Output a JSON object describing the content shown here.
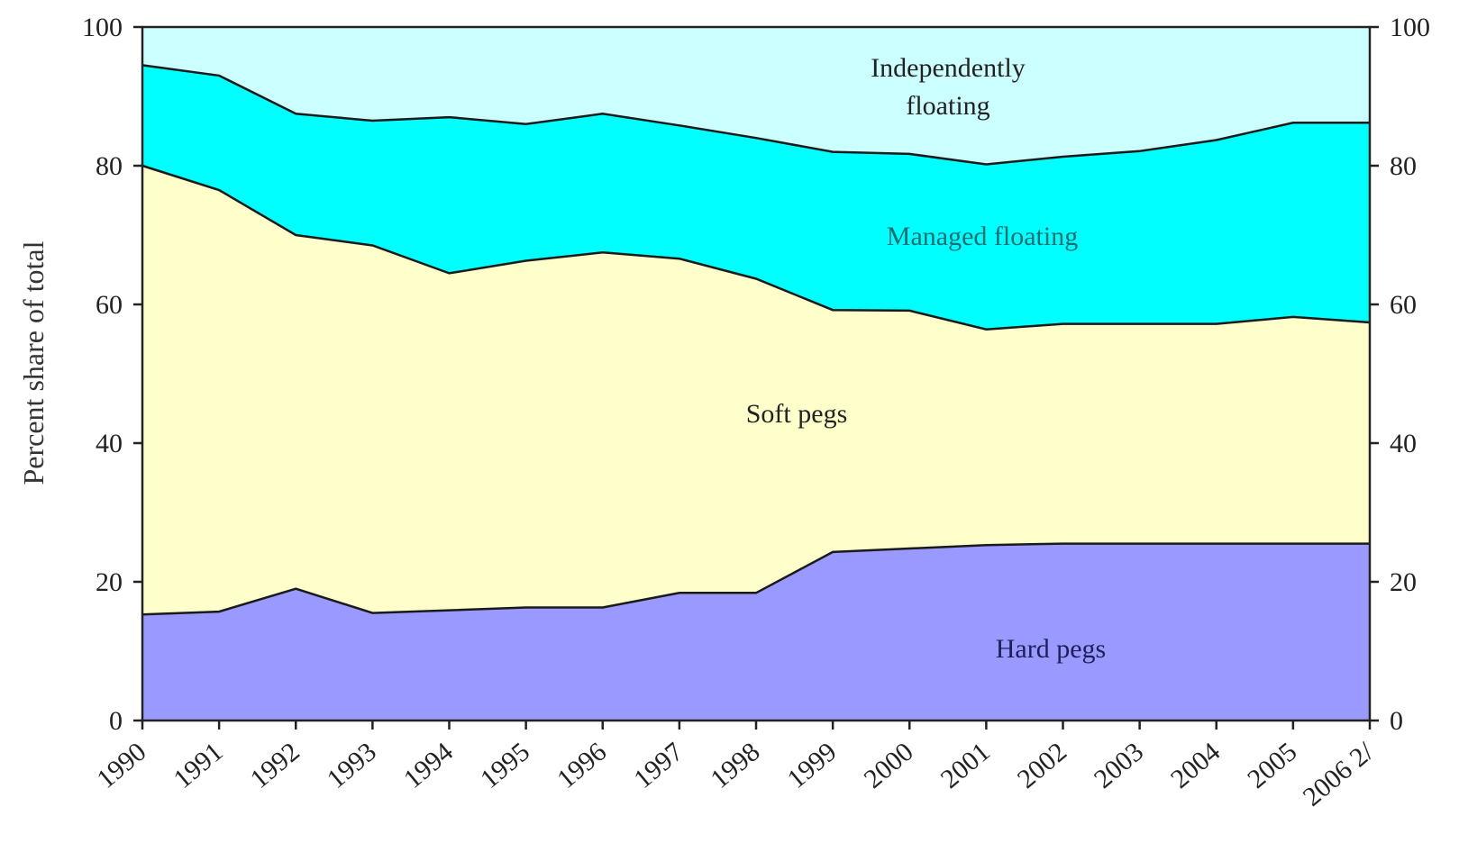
{
  "chart_data": {
    "type": "area",
    "stacked": true,
    "ylabel": "Percent share of total",
    "xlabel": "",
    "ylim": [
      0,
      100
    ],
    "yticks": [
      0,
      20,
      40,
      60,
      80,
      100
    ],
    "secondary_yaxis": true,
    "x": [
      "1990",
      "1991",
      "1992",
      "1993",
      "1994",
      "1995",
      "1996",
      "1997",
      "1998",
      "1999",
      "2000",
      "2001",
      "2002",
      "2003",
      "2004",
      "2005",
      "2006 2/"
    ],
    "series": [
      {
        "name": "Hard pegs",
        "color": "#9999ff",
        "values": [
          15.3,
          15.7,
          19.0,
          15.5,
          15.9,
          16.3,
          16.3,
          18.4,
          18.4,
          24.3,
          24.8,
          25.3,
          25.5,
          25.5,
          25.5,
          25.5,
          25.5
        ]
      },
      {
        "name": "Soft pegs",
        "color": "#ffffcc",
        "values": [
          64.7,
          60.8,
          51.0,
          53.0,
          48.6,
          50.0,
          51.2,
          48.2,
          45.3,
          34.9,
          34.3,
          31.1,
          31.7,
          31.7,
          31.7,
          32.7,
          31.9
        ]
      },
      {
        "name": "Managed floating",
        "color": "#00ffff",
        "values": [
          14.5,
          16.5,
          17.5,
          18.0,
          22.5,
          19.7,
          20.0,
          19.2,
          20.3,
          22.8,
          22.6,
          23.8,
          24.1,
          24.9,
          26.5,
          28.0,
          28.8
        ]
      },
      {
        "name": "Independently floating",
        "color": "#ccffff",
        "values": [
          5.5,
          7.0,
          12.5,
          13.5,
          13.0,
          14.0,
          12.5,
          14.2,
          16.0,
          18.0,
          18.3,
          19.8,
          18.7,
          17.9,
          16.3,
          13.8,
          13.8
        ]
      }
    ],
    "region_labels": {
      "independently_floating_line1": "Independently",
      "independently_floating_line2": "floating",
      "managed_floating": "Managed floating",
      "soft_pegs": "Soft pegs",
      "hard_pegs": "Hard pegs"
    }
  }
}
